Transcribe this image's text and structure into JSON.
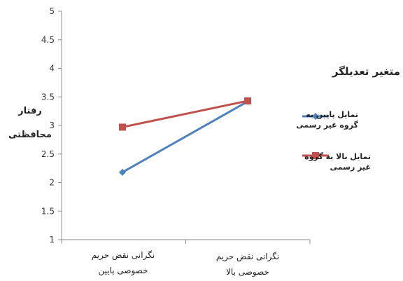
{
  "chart_data": {
    "type": "line",
    "categories": [
      "نگرانی نقض حریم خصوصی پایین",
      "نگرانی نقض حریم خصوصی بالا"
    ],
    "category_lines": [
      [
        "نگرانی نقض حریم",
        "خصوصی پایین"
      ],
      [
        "نگرانی نقض حریم",
        "خصوصی بالا"
      ]
    ],
    "series": [
      {
        "name": "تمایل پایین به گروه غیر رسمی",
        "name_lines": [
          "تمایل پایین به",
          "گروه غیر رسمی"
        ],
        "values": [
          2.18,
          3.42
        ],
        "color": "#4f81bd",
        "marker": "diamond"
      },
      {
        "name": "تمایل بالا به گروه غیر رسمی",
        "name_lines": [
          "تمایل بالا به گروه",
          "غیر رسمی"
        ],
        "values": [
          2.97,
          3.43
        ],
        "color": "#c0504d",
        "marker": "square"
      }
    ],
    "title": "",
    "legend_title": "متغیر تعدیلگر",
    "xlabel": "",
    "ylabel": "رفتار محافظتی",
    "ylabel_lines": [
      "رفتار",
      "محافظتی"
    ],
    "ylim": [
      1,
      5
    ],
    "yticks": [
      "1",
      "1.5",
      "2",
      "2.5",
      "3",
      "3.5",
      "4",
      "4.5",
      "5"
    ],
    "grid": false,
    "legend_position": "right"
  }
}
